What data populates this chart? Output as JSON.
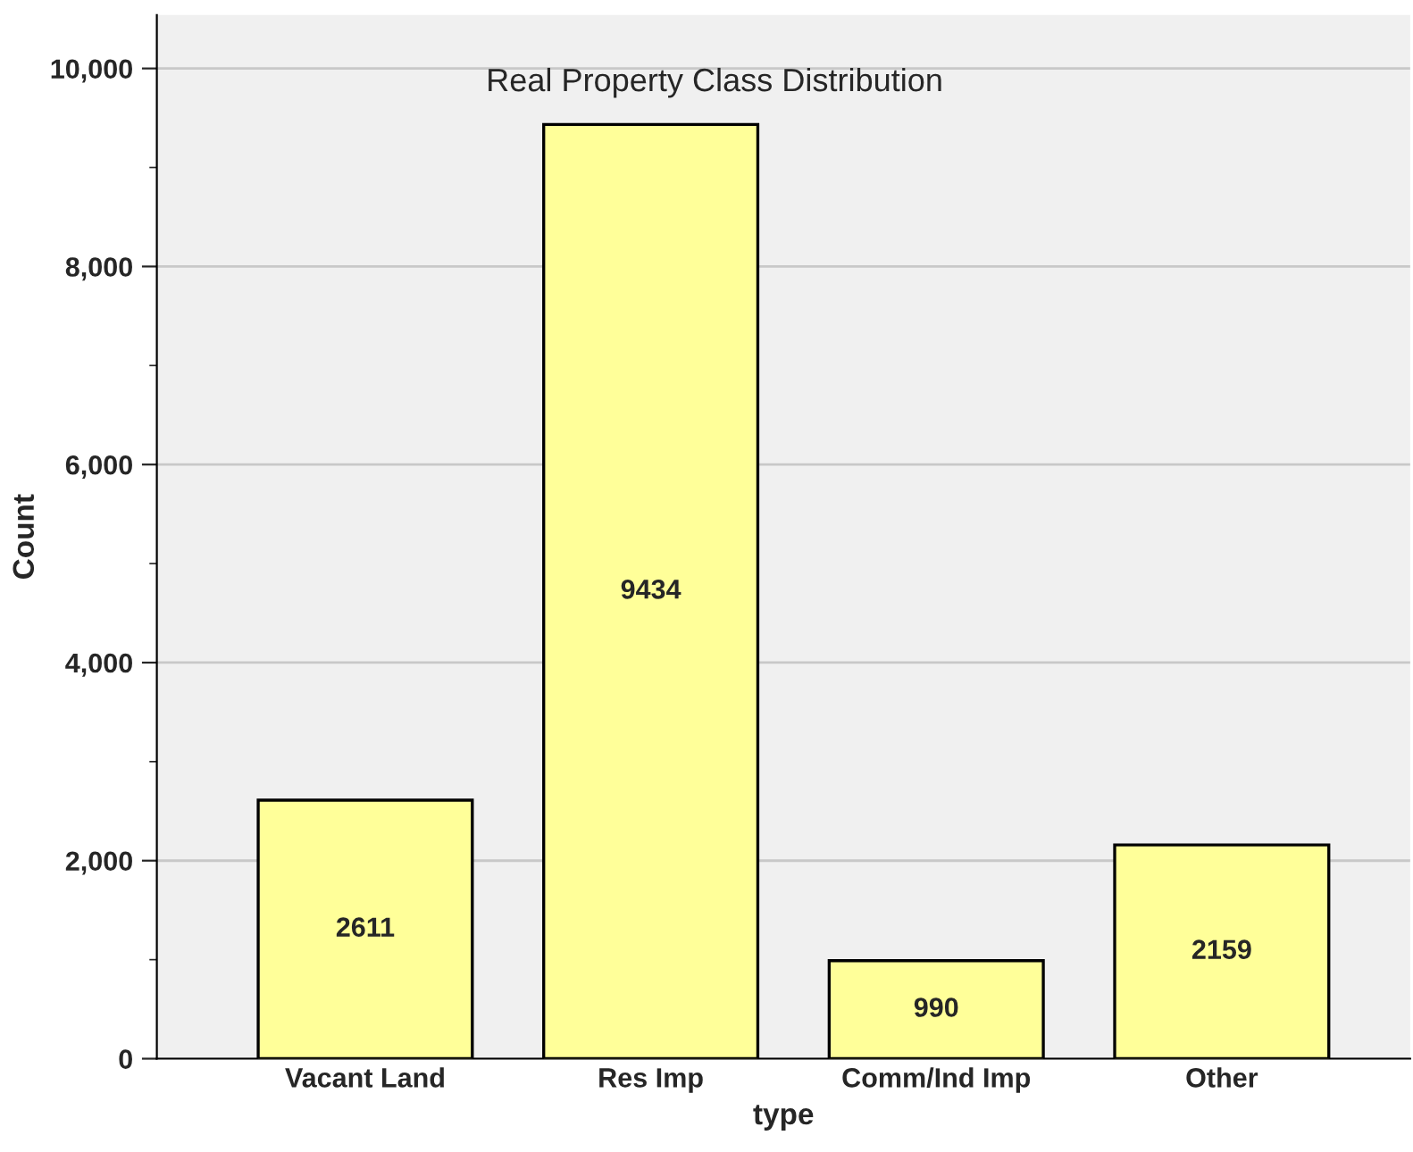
{
  "chart_data": {
    "type": "bar",
    "title": "Real Property Class Distribution",
    "xlabel": "type",
    "ylabel": "Count",
    "categories": [
      "Vacant Land",
      "Res Imp",
      "Comm/Ind Imp",
      "Other"
    ],
    "values": [
      2611,
      9434,
      990,
      2159
    ],
    "color": "#ffff99",
    "ylim": [
      0,
      10540
    ],
    "yticks": [
      {
        "value": 0,
        "label": "0"
      },
      {
        "value": 2000,
        "label": "2,000"
      },
      {
        "value": 4000,
        "label": "4,000"
      },
      {
        "value": 6000,
        "label": "6,000"
      },
      {
        "value": 8000,
        "label": "8,000"
      },
      {
        "value": 10000,
        "label": "10,000"
      }
    ],
    "grid": "y",
    "data_labels": true
  }
}
